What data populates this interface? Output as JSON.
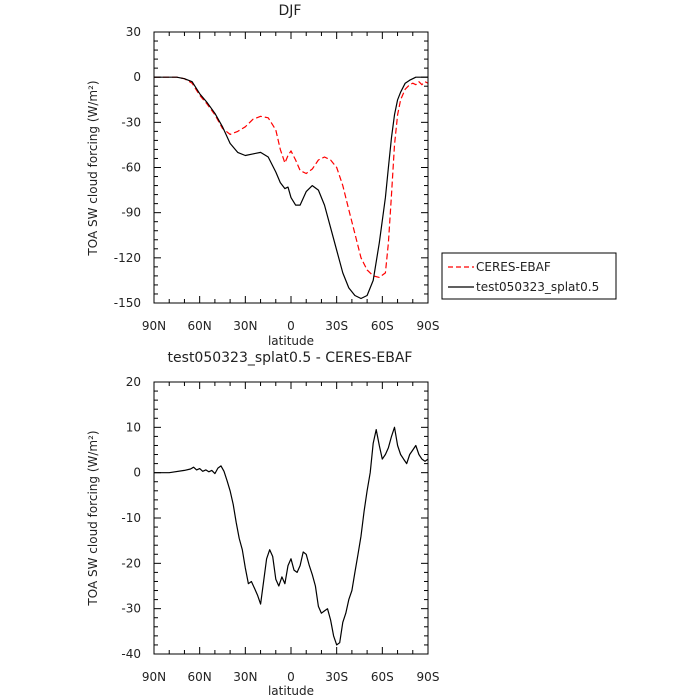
{
  "chart_data": [
    {
      "type": "line",
      "title": "DJF",
      "xlabel": "latitude",
      "ylabel": "TOA SW cloud forcing (W/m²)",
      "x_tick_labels": [
        "90N",
        "60N",
        "30N",
        "0",
        "30S",
        "60S",
        "90S"
      ],
      "x_ticks": [
        90,
        60,
        30,
        0,
        -30,
        -60,
        -90
      ],
      "xlim": [
        90,
        -90
      ],
      "y_ticks": [
        30,
        0,
        -30,
        -60,
        -90,
        -120,
        -150
      ],
      "ylim": [
        -150,
        30
      ],
      "legend": "right-outside",
      "series": [
        {
          "name": "CERES-EBAF",
          "color": "#ff0000",
          "dash": "dashed",
          "x": [
            90,
            80,
            75,
            70,
            65,
            60,
            55,
            50,
            45,
            40,
            35,
            30,
            25,
            20,
            15,
            10,
            7,
            4,
            2,
            0,
            -3,
            -6,
            -10,
            -14,
            -18,
            -22,
            -26,
            -30,
            -34,
            -38,
            -42,
            -46,
            -50,
            -54,
            -58,
            -62,
            -64,
            -66,
            -68,
            -70,
            -72,
            -75,
            -78,
            -80,
            -82,
            -84,
            -86,
            -88,
            -90
          ],
          "y": [
            0,
            0,
            0,
            -1,
            -4,
            -12,
            -18,
            -25,
            -34,
            -38,
            -36,
            -33,
            -28,
            -26,
            -27,
            -35,
            -48,
            -57,
            -52,
            -49,
            -55,
            -62,
            -64,
            -61,
            -55,
            -53,
            -55,
            -60,
            -72,
            -88,
            -104,
            -120,
            -128,
            -132,
            -133,
            -130,
            -110,
            -78,
            -45,
            -25,
            -15,
            -8,
            -5,
            -4,
            -5,
            -3,
            -5,
            -3,
            -4
          ]
        },
        {
          "name": "test050323_splat0.5",
          "color": "#000000",
          "dash": "solid",
          "x": [
            90,
            80,
            75,
            70,
            65,
            60,
            55,
            50,
            45,
            40,
            35,
            30,
            25,
            20,
            15,
            10,
            7,
            4,
            2,
            0,
            -3,
            -6,
            -10,
            -14,
            -18,
            -22,
            -26,
            -30,
            -34,
            -38,
            -42,
            -46,
            -50,
            -54,
            -58,
            -62,
            -64,
            -66,
            -68,
            -70,
            -72,
            -75,
            -78,
            -80,
            -82,
            -84,
            -86,
            -88,
            -90
          ],
          "y": [
            0,
            0,
            0,
            -1,
            -3,
            -11,
            -17,
            -24,
            -33,
            -44,
            -50,
            -52,
            -51,
            -50,
            -53,
            -63,
            -70,
            -74,
            -73,
            -80,
            -85,
            -85,
            -76,
            -72,
            -75,
            -85,
            -100,
            -115,
            -130,
            -140,
            -145,
            -147,
            -145,
            -135,
            -110,
            -80,
            -60,
            -40,
            -25,
            -15,
            -10,
            -4,
            -2,
            -1,
            0,
            0,
            0,
            0,
            0
          ]
        }
      ]
    },
    {
      "type": "line",
      "title": "test050323_splat0.5 - CERES-EBAF",
      "xlabel": "latitude",
      "ylabel": "TOA SW cloud forcing (W/m²)",
      "x_tick_labels": [
        "90N",
        "60N",
        "30N",
        "0",
        "30S",
        "60S",
        "90S"
      ],
      "x_ticks": [
        90,
        60,
        30,
        0,
        -30,
        -60,
        -90
      ],
      "xlim": [
        90,
        -90
      ],
      "y_ticks": [
        20,
        10,
        0,
        -10,
        -20,
        -30,
        -40
      ],
      "ylim": [
        -40,
        20
      ],
      "series": [
        {
          "color": "#000000",
          "dash": "solid",
          "x": [
            90,
            80,
            70,
            66,
            64,
            62,
            60,
            58,
            56,
            54,
            52,
            50,
            48,
            46,
            44,
            42,
            40,
            38,
            36,
            34,
            32,
            30,
            28,
            26,
            24,
            22,
            20,
            18,
            16,
            14,
            12,
            10,
            8,
            6,
            4,
            2,
            0,
            -2,
            -4,
            -6,
            -8,
            -10,
            -12,
            -14,
            -16,
            -18,
            -20,
            -22,
            -24,
            -26,
            -28,
            -30,
            -32,
            -34,
            -36,
            -38,
            -40,
            -42,
            -44,
            -46,
            -48,
            -50,
            -52,
            -54,
            -56,
            -58,
            -60,
            -62,
            -64,
            -66,
            -68,
            -70,
            -72,
            -74,
            -76,
            -78,
            -80,
            -82,
            -84,
            -86,
            -88,
            -90
          ],
          "y": [
            0,
            0,
            0.5,
            0.8,
            1.2,
            0.6,
            0.9,
            0.3,
            0.6,
            0.2,
            0.5,
            -0.2,
            1.0,
            1.5,
            0.3,
            -1.8,
            -4.0,
            -7.0,
            -11.0,
            -14.5,
            -17.0,
            -21.0,
            -24.5,
            -24.0,
            -25.5,
            -27.0,
            -29.0,
            -24.0,
            -19.0,
            -17.0,
            -18.5,
            -23.5,
            -25.0,
            -23.0,
            -24.5,
            -20.5,
            -19.0,
            -21.5,
            -22.0,
            -20.5,
            -17.5,
            -18.0,
            -20.5,
            -22.5,
            -25.0,
            -29.5,
            -31.0,
            -30.5,
            -30.0,
            -32.5,
            -36.0,
            -38.0,
            -37.5,
            -33.0,
            -31.0,
            -28.0,
            -26.0,
            -22.0,
            -18.0,
            -14.0,
            -8.5,
            -4.0,
            0.0,
            6.5,
            9.5,
            6.0,
            3.0,
            4.0,
            5.5,
            8.0,
            10.0,
            6.0,
            4.0,
            3.0,
            2.0,
            4.0,
            5.0,
            6.0,
            4.0,
            3.0,
            2.5,
            3.0
          ]
        }
      ]
    }
  ]
}
